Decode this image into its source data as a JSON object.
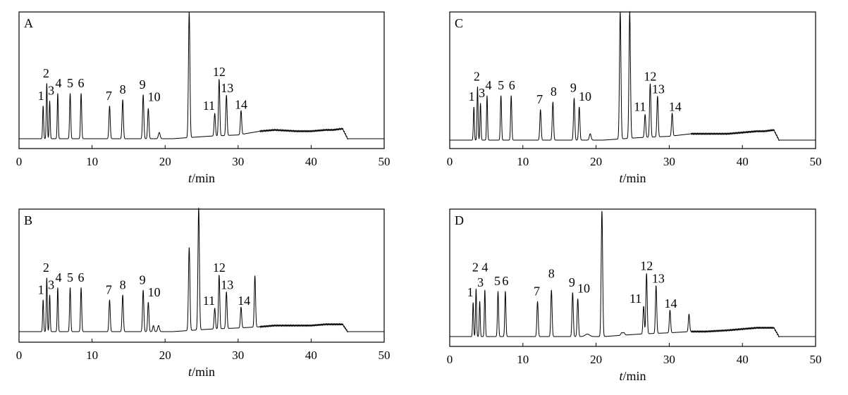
{
  "chart_data": [
    {
      "type": "line",
      "panel_label": "A",
      "xlabel_italic": "t",
      "xlabel_rest": "/min",
      "xlim": [
        0,
        50
      ],
      "xticks": [
        0,
        10,
        20,
        30,
        40,
        50
      ],
      "ylim": [
        0,
        1
      ],
      "peaks": [
        {
          "x": 3.3,
          "h": 0.26,
          "w": 0.07
        },
        {
          "x": 3.8,
          "h": 0.44,
          "w": 0.07
        },
        {
          "x": 4.2,
          "h": 0.3,
          "w": 0.07
        },
        {
          "x": 5.3,
          "h": 0.36,
          "w": 0.07
        },
        {
          "x": 7.0,
          "h": 0.36,
          "w": 0.08
        },
        {
          "x": 8.5,
          "h": 0.36,
          "w": 0.08
        },
        {
          "x": 12.4,
          "h": 0.26,
          "w": 0.09
        },
        {
          "x": 14.2,
          "h": 0.31,
          "w": 0.09
        },
        {
          "x": 17.0,
          "h": 0.35,
          "w": 0.09
        },
        {
          "x": 17.7,
          "h": 0.24,
          "w": 0.09
        },
        {
          "x": 19.2,
          "h": 0.05,
          "w": 0.12
        },
        {
          "x": 23.3,
          "h": 1.0,
          "w": 0.1
        },
        {
          "x": 26.8,
          "h": 0.18,
          "w": 0.09
        },
        {
          "x": 27.4,
          "h": 0.45,
          "w": 0.09
        },
        {
          "x": 28.4,
          "h": 0.32,
          "w": 0.09
        },
        {
          "x": 30.4,
          "h": 0.19,
          "w": 0.09
        }
      ],
      "baseline": [
        [
          0,
          0
        ],
        [
          21,
          0
        ],
        [
          26,
          0.02
        ],
        [
          30,
          0.03
        ],
        [
          33,
          0.06
        ],
        [
          35,
          0.07
        ],
        [
          38,
          0.06
        ],
        [
          40,
          0.06
        ],
        [
          42,
          0.07
        ],
        [
          43,
          0.07
        ],
        [
          44.3,
          0.08
        ],
        [
          45,
          0
        ],
        [
          50,
          0
        ]
      ],
      "labels": [
        {
          "text": "1",
          "x": 3.0,
          "h": 0.31
        },
        {
          "text": "2",
          "x": 3.7,
          "h": 0.49
        },
        {
          "text": "3",
          "x": 4.4,
          "h": 0.35
        },
        {
          "text": "4",
          "x": 5.4,
          "h": 0.41
        },
        {
          "text": "5",
          "x": 7.0,
          "h": 0.41
        },
        {
          "text": "6",
          "x": 8.5,
          "h": 0.41
        },
        {
          "text": "7",
          "x": 12.3,
          "h": 0.31
        },
        {
          "text": "8",
          "x": 14.2,
          "h": 0.36
        },
        {
          "text": "9",
          "x": 16.9,
          "h": 0.4
        },
        {
          "text": "10",
          "x": 18.5,
          "h": 0.3
        },
        {
          "text": "11",
          "x": 26.0,
          "h": 0.23
        },
        {
          "text": "12",
          "x": 27.4,
          "h": 0.5
        },
        {
          "text": "13",
          "x": 28.5,
          "h": 0.37
        },
        {
          "text": "14",
          "x": 30.4,
          "h": 0.24
        }
      ]
    },
    {
      "type": "line",
      "panel_label": "B",
      "xlabel_italic": "t",
      "xlabel_rest": "/min",
      "xlim": [
        0,
        50
      ],
      "xticks": [
        0,
        10,
        20,
        30,
        40,
        50
      ],
      "ylim": [
        0,
        1
      ],
      "peaks": [
        {
          "x": 3.3,
          "h": 0.26,
          "w": 0.07
        },
        {
          "x": 3.8,
          "h": 0.44,
          "w": 0.07
        },
        {
          "x": 4.2,
          "h": 0.3,
          "w": 0.07
        },
        {
          "x": 5.3,
          "h": 0.36,
          "w": 0.07
        },
        {
          "x": 7.0,
          "h": 0.36,
          "w": 0.08
        },
        {
          "x": 8.5,
          "h": 0.36,
          "w": 0.08
        },
        {
          "x": 12.4,
          "h": 0.26,
          "w": 0.09
        },
        {
          "x": 14.2,
          "h": 0.3,
          "w": 0.09
        },
        {
          "x": 17.0,
          "h": 0.34,
          "w": 0.09
        },
        {
          "x": 17.7,
          "h": 0.24,
          "w": 0.09
        },
        {
          "x": 18.4,
          "h": 0.05,
          "w": 0.1
        },
        {
          "x": 19.1,
          "h": 0.05,
          "w": 0.12
        },
        {
          "x": 23.3,
          "h": 0.68,
          "w": 0.1
        },
        {
          "x": 24.6,
          "h": 1.0,
          "w": 0.1
        },
        {
          "x": 26.8,
          "h": 0.17,
          "w": 0.09
        },
        {
          "x": 27.4,
          "h": 0.44,
          "w": 0.09
        },
        {
          "x": 28.4,
          "h": 0.3,
          "w": 0.09
        },
        {
          "x": 30.4,
          "h": 0.17,
          "w": 0.09
        },
        {
          "x": 32.3,
          "h": 0.42,
          "w": 0.09
        }
      ],
      "baseline": [
        [
          0,
          0
        ],
        [
          21,
          0
        ],
        [
          26,
          0.02
        ],
        [
          30,
          0.03
        ],
        [
          33,
          0.04
        ],
        [
          35,
          0.05
        ],
        [
          38,
          0.05
        ],
        [
          40,
          0.05
        ],
        [
          42,
          0.06
        ],
        [
          43,
          0.06
        ],
        [
          44.3,
          0.06
        ],
        [
          45,
          0
        ],
        [
          50,
          0
        ]
      ],
      "labels": [
        {
          "text": "1",
          "x": 3.0,
          "h": 0.31
        },
        {
          "text": "2",
          "x": 3.7,
          "h": 0.49
        },
        {
          "text": "3",
          "x": 4.4,
          "h": 0.35
        },
        {
          "text": "4",
          "x": 5.4,
          "h": 0.41
        },
        {
          "text": "5",
          "x": 7.0,
          "h": 0.41
        },
        {
          "text": "6",
          "x": 8.5,
          "h": 0.41
        },
        {
          "text": "7",
          "x": 12.3,
          "h": 0.31
        },
        {
          "text": "8",
          "x": 14.2,
          "h": 0.35
        },
        {
          "text": "9",
          "x": 16.9,
          "h": 0.39
        },
        {
          "text": "10",
          "x": 18.5,
          "h": 0.29
        },
        {
          "text": "11",
          "x": 26.0,
          "h": 0.22
        },
        {
          "text": "12",
          "x": 27.4,
          "h": 0.49
        },
        {
          "text": "13",
          "x": 28.5,
          "h": 0.35
        },
        {
          "text": "14",
          "x": 30.8,
          "h": 0.22
        }
      ]
    },
    {
      "type": "line",
      "panel_label": "C",
      "xlabel_italic": "t",
      "xlabel_rest": "/min",
      "xlim": [
        0,
        50
      ],
      "xticks": [
        0,
        10,
        20,
        30,
        40,
        50
      ],
      "ylim": [
        0,
        1
      ],
      "peaks": [
        {
          "x": 3.3,
          "h": 0.26,
          "w": 0.07
        },
        {
          "x": 3.8,
          "h": 0.42,
          "w": 0.07
        },
        {
          "x": 4.2,
          "h": 0.29,
          "w": 0.07
        },
        {
          "x": 5.1,
          "h": 0.35,
          "w": 0.07
        },
        {
          "x": 7.0,
          "h": 0.35,
          "w": 0.08
        },
        {
          "x": 8.4,
          "h": 0.35,
          "w": 0.08
        },
        {
          "x": 12.4,
          "h": 0.24,
          "w": 0.09
        },
        {
          "x": 14.1,
          "h": 0.3,
          "w": 0.09
        },
        {
          "x": 17.0,
          "h": 0.33,
          "w": 0.09
        },
        {
          "x": 17.7,
          "h": 0.26,
          "w": 0.09
        },
        {
          "x": 19.2,
          "h": 0.05,
          "w": 0.12
        },
        {
          "x": 23.3,
          "h": 1.0,
          "w": 0.1
        },
        {
          "x": 24.6,
          "h": 1.0,
          "w": 0.1
        },
        {
          "x": 26.7,
          "h": 0.18,
          "w": 0.09
        },
        {
          "x": 27.4,
          "h": 0.42,
          "w": 0.09
        },
        {
          "x": 28.4,
          "h": 0.32,
          "w": 0.09
        },
        {
          "x": 30.4,
          "h": 0.18,
          "w": 0.09
        }
      ],
      "baseline": [
        [
          0,
          0
        ],
        [
          21,
          0
        ],
        [
          26,
          0.02
        ],
        [
          30,
          0.03
        ],
        [
          33,
          0.05
        ],
        [
          35,
          0.05
        ],
        [
          38,
          0.05
        ],
        [
          40,
          0.06
        ],
        [
          42,
          0.07
        ],
        [
          43,
          0.07
        ],
        [
          44.3,
          0.08
        ],
        [
          45,
          0
        ],
        [
          50,
          0
        ]
      ],
      "labels": [
        {
          "text": "1",
          "x": 3.0,
          "h": 0.31
        },
        {
          "text": "2",
          "x": 3.7,
          "h": 0.47
        },
        {
          "text": "3",
          "x": 4.4,
          "h": 0.34
        },
        {
          "text": "4",
          "x": 5.3,
          "h": 0.4
        },
        {
          "text": "5",
          "x": 7.0,
          "h": 0.4
        },
        {
          "text": "6",
          "x": 8.5,
          "h": 0.4
        },
        {
          "text": "7",
          "x": 12.3,
          "h": 0.29
        },
        {
          "text": "8",
          "x": 14.2,
          "h": 0.35
        },
        {
          "text": "9",
          "x": 16.9,
          "h": 0.38
        },
        {
          "text": "10",
          "x": 18.5,
          "h": 0.31
        },
        {
          "text": "11",
          "x": 26.0,
          "h": 0.23
        },
        {
          "text": "12",
          "x": 27.4,
          "h": 0.47
        },
        {
          "text": "13",
          "x": 28.5,
          "h": 0.37
        },
        {
          "text": "14",
          "x": 30.8,
          "h": 0.23
        }
      ]
    },
    {
      "type": "line",
      "panel_label": "D",
      "xlabel_italic": "t",
      "xlabel_rest": "/min",
      "xlim": [
        0,
        50
      ],
      "xticks": [
        0,
        10,
        20,
        30,
        40,
        50
      ],
      "ylim": [
        0,
        1
      ],
      "peaks": [
        {
          "x": 3.2,
          "h": 0.27,
          "w": 0.07
        },
        {
          "x": 3.6,
          "h": 0.38,
          "w": 0.07
        },
        {
          "x": 4.1,
          "h": 0.28,
          "w": 0.07
        },
        {
          "x": 4.8,
          "h": 0.37,
          "w": 0.07
        },
        {
          "x": 6.6,
          "h": 0.36,
          "w": 0.08
        },
        {
          "x": 7.6,
          "h": 0.36,
          "w": 0.08
        },
        {
          "x": 12.0,
          "h": 0.28,
          "w": 0.09
        },
        {
          "x": 13.9,
          "h": 0.37,
          "w": 0.09
        },
        {
          "x": 16.8,
          "h": 0.35,
          "w": 0.09
        },
        {
          "x": 17.5,
          "h": 0.3,
          "w": 0.09
        },
        {
          "x": 18.8,
          "h": 0.02,
          "w": 0.3
        },
        {
          "x": 20.8,
          "h": 1.0,
          "w": 0.1
        },
        {
          "x": 23.5,
          "h": 0.02,
          "w": 0.12
        },
        {
          "x": 23.8,
          "h": 0.02,
          "w": 0.12
        },
        {
          "x": 26.5,
          "h": 0.22,
          "w": 0.09
        },
        {
          "x": 26.9,
          "h": 0.48,
          "w": 0.09
        },
        {
          "x": 28.2,
          "h": 0.38,
          "w": 0.09
        },
        {
          "x": 30.1,
          "h": 0.18,
          "w": 0.09
        },
        {
          "x": 32.7,
          "h": 0.14,
          "w": 0.09
        }
      ],
      "baseline": [
        [
          0,
          0
        ],
        [
          21,
          0
        ],
        [
          26,
          0.02
        ],
        [
          30,
          0.03
        ],
        [
          33,
          0.04
        ],
        [
          35,
          0.04
        ],
        [
          38,
          0.05
        ],
        [
          40,
          0.06
        ],
        [
          42,
          0.07
        ],
        [
          43,
          0.07
        ],
        [
          44.3,
          0.07
        ],
        [
          45,
          0
        ],
        [
          50,
          0
        ]
      ],
      "labels": [
        {
          "text": "1",
          "x": 2.8,
          "h": 0.32
        },
        {
          "text": "2",
          "x": 3.5,
          "h": 0.52
        },
        {
          "text": "3",
          "x": 4.2,
          "h": 0.4
        },
        {
          "text": "4",
          "x": 4.8,
          "h": 0.52
        },
        {
          "text": "5",
          "x": 6.5,
          "h": 0.41
        },
        {
          "text": "6",
          "x": 7.6,
          "h": 0.41
        },
        {
          "text": "7",
          "x": 11.9,
          "h": 0.33
        },
        {
          "text": "8",
          "x": 13.9,
          "h": 0.47
        },
        {
          "text": "9",
          "x": 16.7,
          "h": 0.4
        },
        {
          "text": "10",
          "x": 18.3,
          "h": 0.35
        },
        {
          "text": "11",
          "x": 25.4,
          "h": 0.27
        },
        {
          "text": "12",
          "x": 26.9,
          "h": 0.53
        },
        {
          "text": "13",
          "x": 28.5,
          "h": 0.43
        },
        {
          "text": "14",
          "x": 30.2,
          "h": 0.23
        }
      ]
    }
  ]
}
